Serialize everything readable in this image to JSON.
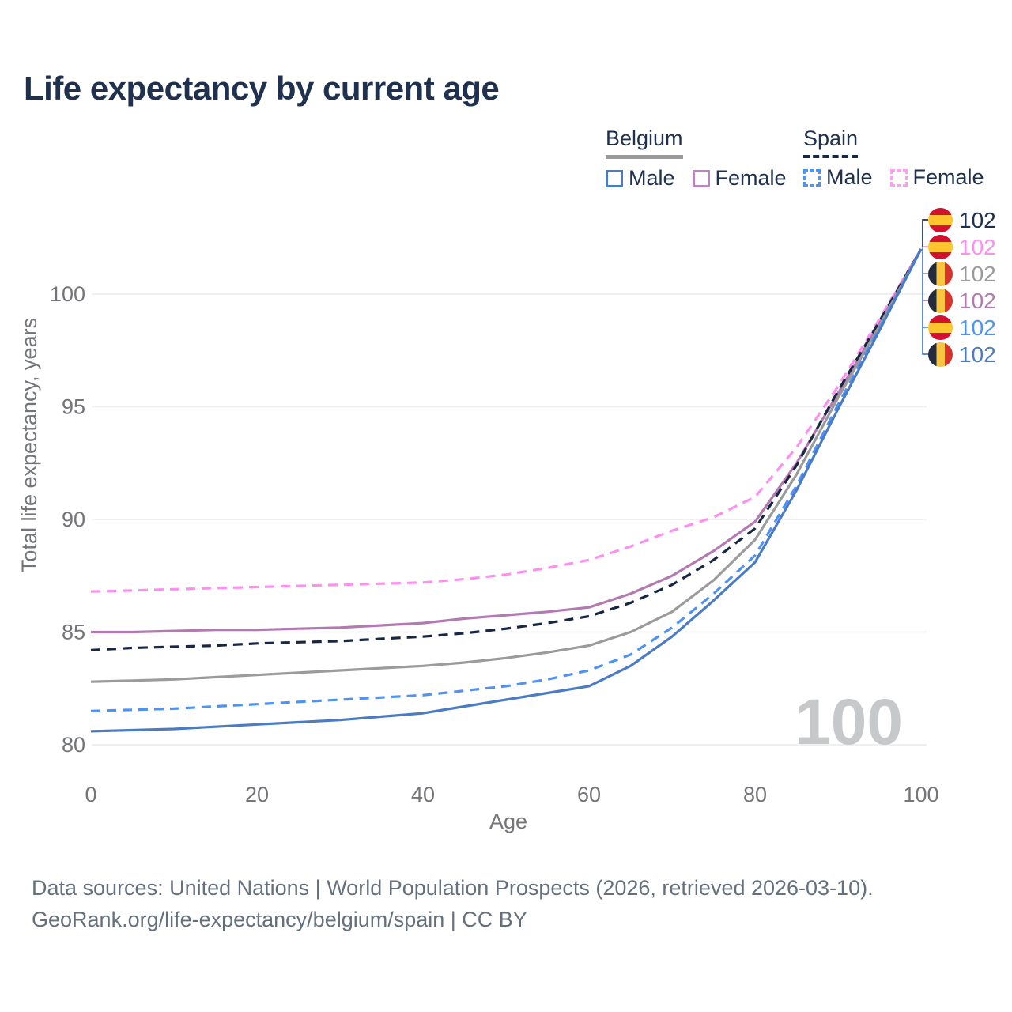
{
  "header": {
    "title": "Life expectancy by current age"
  },
  "legend": {
    "belgium": {
      "label": "Belgium",
      "male": "Male",
      "female": "Female"
    },
    "spain": {
      "label": "Spain",
      "male": "Male",
      "female": "Female"
    }
  },
  "watermark": "100",
  "chart_data": {
    "type": "line",
    "title": "Life expectancy by current age",
    "xlabel": "Age",
    "ylabel": "Total life expectancy, years",
    "xlim": [
      0,
      100
    ],
    "ylim": [
      80,
      100
    ],
    "xticks": [
      0,
      20,
      40,
      60,
      80,
      100
    ],
    "yticks": [
      80,
      85,
      90,
      95,
      100
    ],
    "grid": "horizontal",
    "legend_position": "top-right",
    "x": [
      0,
      5,
      10,
      15,
      20,
      25,
      30,
      35,
      40,
      45,
      50,
      55,
      60,
      65,
      70,
      75,
      80,
      85,
      90,
      95,
      100
    ],
    "series": [
      {
        "name": "Spain Female",
        "country": "Spain",
        "sex": "Female",
        "color": "#fe8ff1",
        "dashed": true,
        "values": [
          86.8,
          86.85,
          86.9,
          86.95,
          87.0,
          87.05,
          87.1,
          87.15,
          87.2,
          87.35,
          87.55,
          87.85,
          88.2,
          88.8,
          89.5,
          90.1,
          91.0,
          93.2,
          95.9,
          98.9,
          102
        ]
      },
      {
        "name": "Belgium Female",
        "country": "Belgium",
        "sex": "Female",
        "color": "#b379b1",
        "dashed": false,
        "values": [
          85.0,
          85.0,
          85.05,
          85.1,
          85.1,
          85.15,
          85.2,
          85.3,
          85.4,
          85.6,
          85.75,
          85.9,
          86.1,
          86.7,
          87.5,
          88.6,
          89.9,
          92.5,
          95.6,
          98.7,
          102
        ]
      },
      {
        "name": "Spain",
        "country": "Spain",
        "sex": "Both",
        "color": "#182743",
        "dashed": true,
        "values": [
          84.2,
          84.3,
          84.35,
          84.4,
          84.5,
          84.55,
          84.6,
          84.7,
          84.8,
          84.95,
          85.15,
          85.4,
          85.7,
          86.3,
          87.1,
          88.2,
          89.6,
          92.4,
          95.7,
          98.8,
          102
        ]
      },
      {
        "name": "Belgium",
        "country": "Belgium",
        "sex": "Both",
        "color": "#9b9b9b",
        "dashed": false,
        "values": [
          82.8,
          82.85,
          82.9,
          83.0,
          83.1,
          83.2,
          83.3,
          83.4,
          83.5,
          83.65,
          83.85,
          84.1,
          84.4,
          85.0,
          85.9,
          87.3,
          89.1,
          92.0,
          95.4,
          98.6,
          102
        ]
      },
      {
        "name": "Spain Male",
        "country": "Spain",
        "sex": "Male",
        "color": "#4e92f5",
        "dashed": true,
        "values": [
          81.5,
          81.55,
          81.6,
          81.7,
          81.8,
          81.9,
          82.0,
          82.1,
          82.2,
          82.4,
          82.6,
          82.9,
          83.3,
          84.0,
          85.2,
          86.7,
          88.4,
          91.5,
          95.1,
          98.5,
          102
        ]
      },
      {
        "name": "Belgium Male",
        "country": "Belgium",
        "sex": "Male",
        "color": "#4b7bc4",
        "dashed": false,
        "values": [
          80.6,
          80.65,
          80.7,
          80.8,
          80.9,
          81.0,
          81.1,
          81.25,
          81.4,
          81.7,
          82.0,
          82.3,
          82.6,
          83.5,
          84.8,
          86.4,
          88.1,
          91.3,
          94.9,
          98.4,
          102
        ]
      }
    ],
    "end_labels": [
      {
        "flag": "spain",
        "series": "Spain",
        "value": "102",
        "color": "#203150"
      },
      {
        "flag": "spain",
        "series": "Spain Female",
        "value": "102",
        "color": "#fe8ff1"
      },
      {
        "flag": "belgium",
        "series": "Belgium",
        "value": "102",
        "color": "#9b9b9b"
      },
      {
        "flag": "belgium",
        "series": "Belgium Female",
        "value": "102",
        "color": "#b379b1"
      },
      {
        "flag": "spain",
        "series": "Spain Male",
        "value": "102",
        "color": "#4e92f5"
      },
      {
        "flag": "belgium",
        "series": "Belgium Male",
        "value": "102",
        "color": "#4b7bc4"
      }
    ]
  },
  "source": {
    "line1": "Data sources: United Nations | World Population Prospects (2026, retrieved 2026-03-10).",
    "line2": "GeoRank.org/life-expectancy/belgium/spain | CC BY"
  }
}
